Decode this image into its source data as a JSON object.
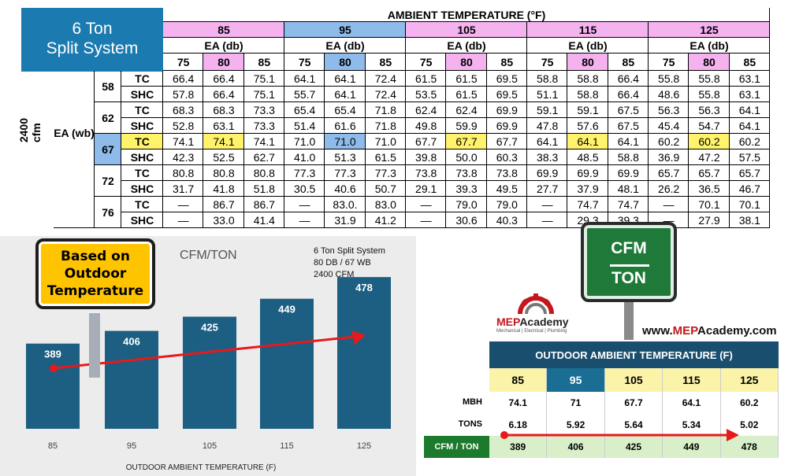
{
  "table": {
    "system_title_lines": [
      "6 Ton",
      "Split System"
    ],
    "ambient_header": "AMBIENT TEMPERATURE (°F)",
    "ambient_temps": [
      "85",
      "95",
      "105",
      "115",
      "125"
    ],
    "ea_db_label": "EA (db)",
    "db_values": [
      "75",
      "80",
      "85"
    ],
    "airflow_label": "2400 cfm",
    "ea_wb_label": "EA (wb)",
    "rows": [
      {
        "wb": "58",
        "type": "TC",
        "values": [
          "66.4",
          "66.4",
          "75.1",
          "64.1",
          "64.1",
          "72.4",
          "61.5",
          "61.5",
          "69.5",
          "58.8",
          "58.8",
          "66.4",
          "55.8",
          "55.8",
          "63.1"
        ]
      },
      {
        "wb": "58",
        "type": "SHC",
        "values": [
          "57.8",
          "66.4",
          "75.1",
          "55.7",
          "64.1",
          "72.4",
          "53.5",
          "61.5",
          "69.5",
          "51.1",
          "58.8",
          "66.4",
          "48.6",
          "55.8",
          "63.1"
        ]
      },
      {
        "wb": "62",
        "type": "TC",
        "values": [
          "68.3",
          "68.3",
          "73.3",
          "65.4",
          "65.4",
          "71.8",
          "62.4",
          "62.4",
          "69.9",
          "59.1",
          "59.1",
          "67.5",
          "56.3",
          "56.3",
          "64.1"
        ]
      },
      {
        "wb": "62",
        "type": "SHC",
        "values": [
          "52.8",
          "63.1",
          "73.3",
          "51.4",
          "61.6",
          "71.8",
          "49.8",
          "59.9",
          "69.9",
          "47.8",
          "57.6",
          "67.5",
          "45.4",
          "54.7",
          "64.1"
        ]
      },
      {
        "wb": "67",
        "type": "TC",
        "values": [
          "74.1",
          "74.1",
          "74.1",
          "71.0",
          "71.0",
          "71.0",
          "67.7",
          "67.7",
          "67.7",
          "64.1",
          "64.1",
          "64.1",
          "60.2",
          "60.2",
          "60.2"
        ]
      },
      {
        "wb": "67",
        "type": "SHC",
        "values": [
          "42.3",
          "52.5",
          "62.7",
          "41.0",
          "51.3",
          "61.5",
          "39.8",
          "50.0",
          "60.3",
          "38.3",
          "48.5",
          "58.8",
          "36.9",
          "47.2",
          "57.5"
        ]
      },
      {
        "wb": "72",
        "type": "TC",
        "values": [
          "80.8",
          "80.8",
          "80.8",
          "77.3",
          "77.3",
          "77.3",
          "73.8",
          "73.8",
          "73.8",
          "69.9",
          "69.9",
          "69.9",
          "65.7",
          "65.7",
          "65.7"
        ]
      },
      {
        "wb": "72",
        "type": "SHC",
        "values": [
          "31.7",
          "41.8",
          "51.8",
          "30.5",
          "40.6",
          "50.7",
          "29.1",
          "39.3",
          "49.5",
          "27.7",
          "37.9",
          "48.1",
          "26.2",
          "36.5",
          "46.7"
        ]
      },
      {
        "wb": "76",
        "type": "TC",
        "values": [
          "—",
          "86.7",
          "86.7",
          "—",
          "83.0.",
          "83.0",
          "—",
          "79.0",
          "79.0",
          "—",
          "74.7",
          "74.7",
          "—",
          "70.1",
          "70.1"
        ]
      },
      {
        "wb": "76",
        "type": "SHC",
        "values": [
          "—",
          "33.0",
          "41.4",
          "—",
          "31.9",
          "41.2",
          "—",
          "30.6",
          "40.3",
          "—",
          "29.3",
          "39.3",
          "—",
          "27.9",
          "38.1"
        ]
      }
    ]
  },
  "chart_data": {
    "type": "bar",
    "title": "CFM/TON",
    "categories": [
      "85",
      "95",
      "105",
      "115",
      "125"
    ],
    "values": [
      389,
      406,
      425,
      449,
      478
    ],
    "xlabel": "OUTDOOR  AMBIENT TEMPERATURE (F)",
    "ylim": [
      0,
      600
    ],
    "bar_color": "#1c5f82",
    "trend_color": "#e8191b",
    "notes": [
      "6 Ton Split System",
      "80 DB / 67 WB",
      "2400 CFM"
    ]
  },
  "callout_sign": [
    "Based on",
    "Outdoor",
    "Temperature"
  ],
  "cfm_sign": {
    "top": "CFM",
    "bottom": "TON"
  },
  "logo": {
    "name_a": "MEP",
    "name_b": "Academy",
    "tagline": "Mechanical | Electrical | Plumbing"
  },
  "url": {
    "prefix": "www.",
    "brand": "MEP",
    "suffix": "Academy.com"
  },
  "summary": {
    "header": "OUTDOOR AMBIENT TEMPERATURE (F)",
    "temps": [
      "85",
      "95",
      "105",
      "115",
      "125"
    ],
    "mbh_label": "MBH",
    "mbh": [
      "74.1",
      "71",
      "67.7",
      "64.1",
      "60.2"
    ],
    "tons_label": "TONS",
    "tons": [
      "6.18",
      "5.92",
      "5.64",
      "5.34",
      "5.02"
    ],
    "cfm_label": "CFM / TON",
    "cfm_ton": [
      "389",
      "406",
      "425",
      "449",
      "478"
    ]
  }
}
